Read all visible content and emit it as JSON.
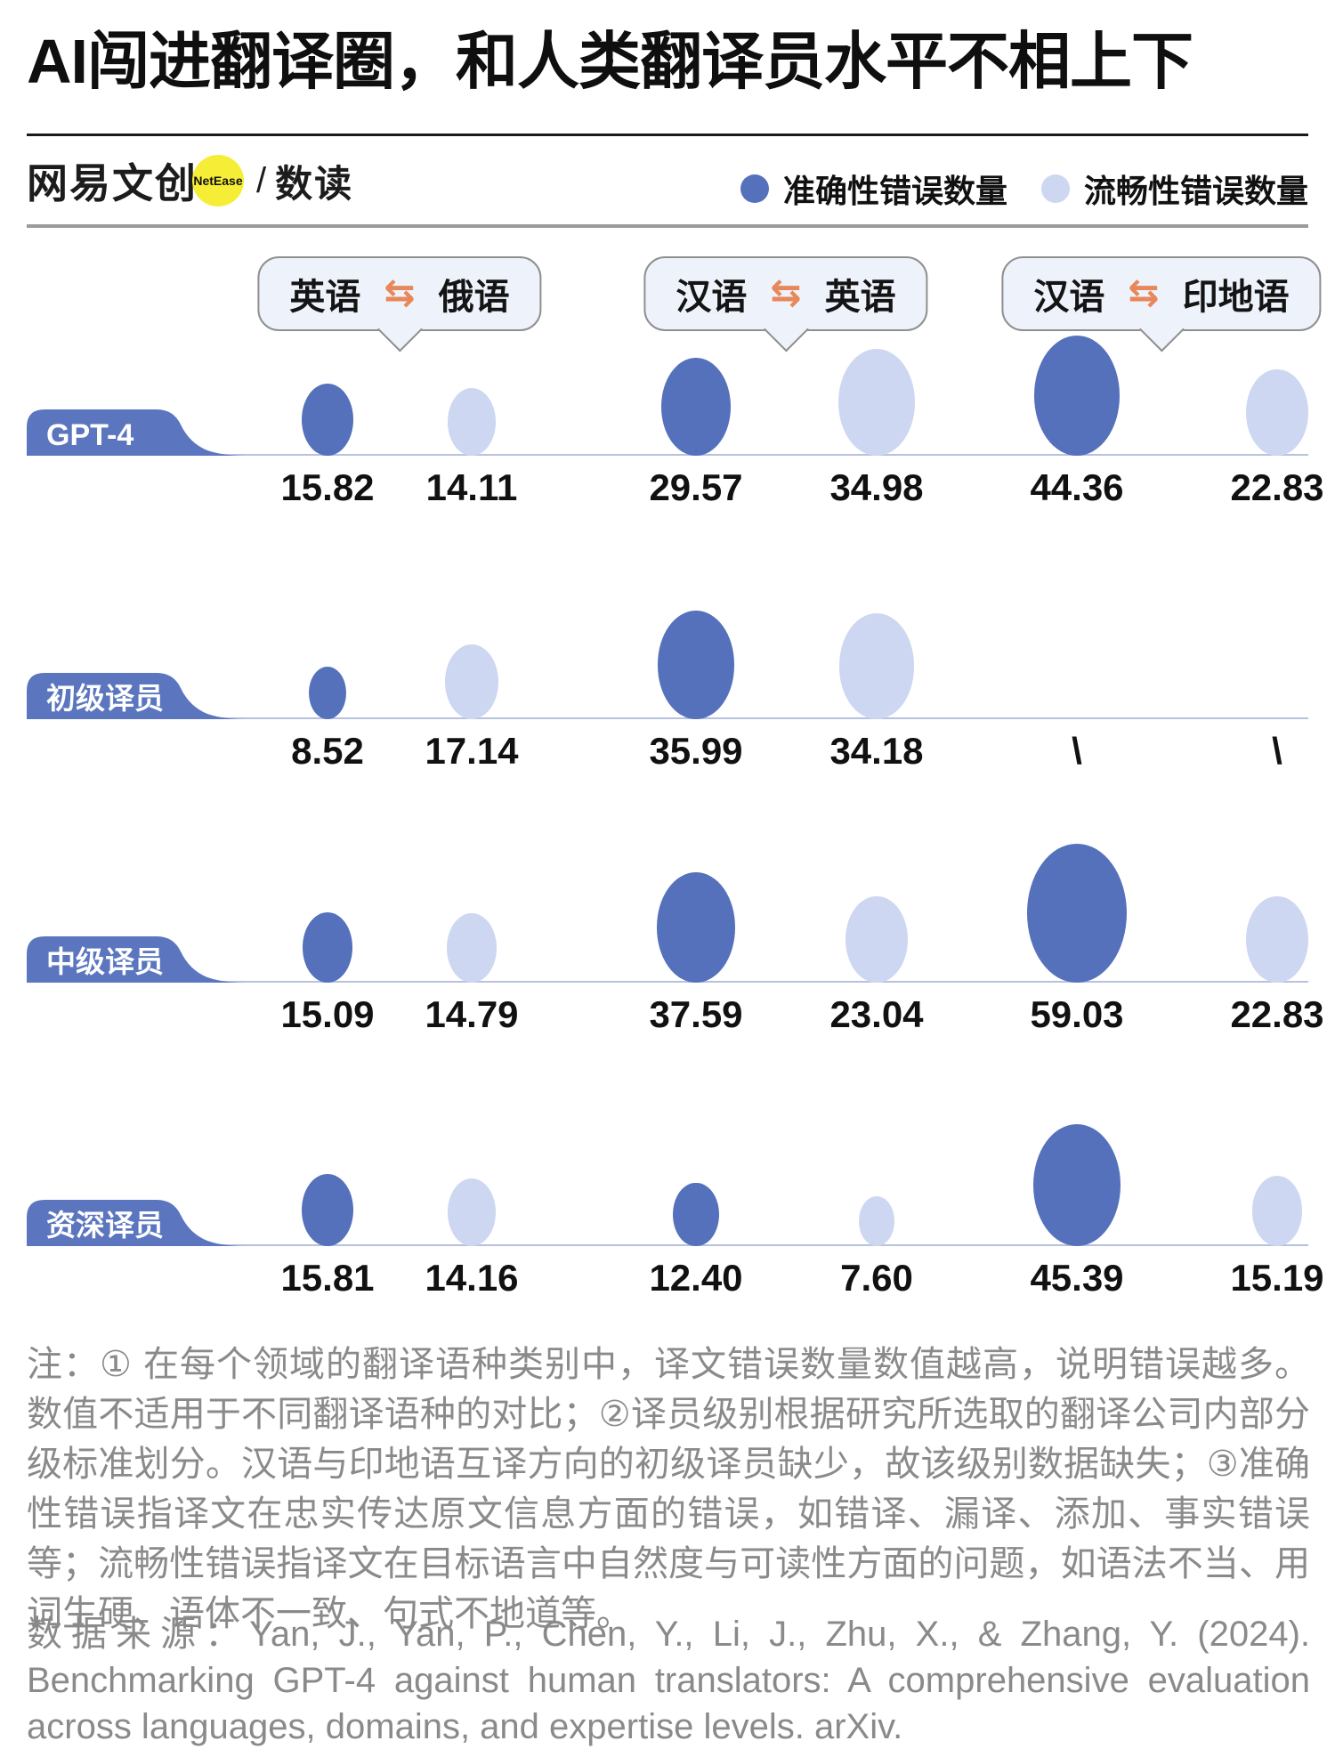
{
  "title": "AI闯进翻译圈，和人类翻译员水平不相上下",
  "brand": {
    "name_cn": "网易文创",
    "badge": "NetEase",
    "separator": "/",
    "channel": "数读"
  },
  "legend": {
    "accuracy_label": "准确性错误数量",
    "fluency_label": "流畅性错误数量"
  },
  "colors": {
    "accuracy": "#5571bc",
    "fluency": "#cdd7f2",
    "row_label_bg": "#5b76bf",
    "baseline": "#b7c1e0",
    "bubble_bg": "#eef2fb",
    "bubble_border": "#8f8f8f",
    "arrow": "#e8875a",
    "note_gray": "#8a8a8a"
  },
  "chart_data": {
    "type": "bubble",
    "title": "AI闯进翻译圈，和人类翻译员水平不相上下",
    "legend": [
      "准确性错误数量",
      "流畅性错误数量"
    ],
    "legend_position": "top-right",
    "arrow_glyph": "⇆",
    "language_pairs": [
      {
        "from": "英语",
        "to": "俄语"
      },
      {
        "from": "汉语",
        "to": "英语"
      },
      {
        "from": "汉语",
        "to": "印地语"
      }
    ],
    "column_series": [
      "accuracy",
      "fluency",
      "accuracy",
      "fluency",
      "accuracy",
      "fluency"
    ],
    "missing_marker": "\\",
    "size_encoding": "bubble size ∝ error count (per language pair)",
    "rows": [
      {
        "label": "GPT-4",
        "values": [
          15.82,
          14.11,
          29.57,
          34.98,
          44.36,
          22.83
        ],
        "display": [
          "15.82",
          "14.11",
          "29.57",
          "34.98",
          "44.36",
          "22.83"
        ]
      },
      {
        "label": "初级译员",
        "values": [
          8.52,
          17.14,
          35.99,
          34.18,
          null,
          null
        ],
        "display": [
          "8.52",
          "17.14",
          "35.99",
          "34.18",
          "\\",
          "\\"
        ]
      },
      {
        "label": "中级译员",
        "values": [
          15.09,
          14.79,
          37.59,
          23.04,
          59.03,
          22.83
        ],
        "display": [
          "15.09",
          "14.79",
          "37.59",
          "23.04",
          "59.03",
          "22.83"
        ]
      },
      {
        "label": "资深译员",
        "values": [
          15.81,
          14.16,
          12.4,
          7.6,
          45.39,
          15.19
        ],
        "display": [
          "15.81",
          "14.16",
          "12.40",
          "7.60",
          "45.39",
          "15.19"
        ]
      }
    ]
  },
  "notes": "注：① 在每个领域的翻译语种类别中，译文错误数量数值越高，说明错误越多。数值不适用于不同翻译语种的对比；②译员级别根据研究所选取的翻译公司内部分级标准划分。汉语与印地语互译方向的初级译员缺少，故该级别数据缺失；③准确性错误指译文在忠实传达原文信息方面的错误，如错译、漏译、添加、事实错误等；流畅性错误指译文在目标语言中自然度与可读性方面的问题，如语法不当、用词生硬、语体不一致、句式不地道等。",
  "source": "数据来源：Yan, J., Yan, P., Chen, Y., Li, J., Zhu, X., & Zhang, Y. (2024). Benchmarking GPT-4 against human translators: A comprehensive evaluation across languages, domains, and expertise levels. arXiv."
}
